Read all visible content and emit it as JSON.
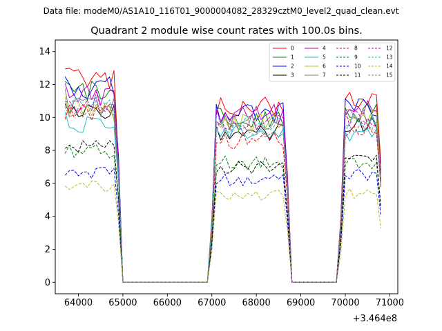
{
  "figure": {
    "suptitle": "Data file: modeM0/AS1A10_116T01_9000004082_28329cztM0_level2_quad_clean.evt",
    "title": "Quadrant 2 module wise count rates with 100.0s bins.",
    "offset_text": "+3.464e8"
  },
  "chart_data": {
    "type": "line",
    "title": "Quadrant 2 module wise count rates with 100.0s bins.",
    "xlabel": "",
    "ylabel": "",
    "x_offset": 346400000,
    "xlim": [
      63480,
      71180
    ],
    "ylim": [
      -0.7,
      14.7
    ],
    "xticks": [
      64000,
      65000,
      66000,
      67000,
      68000,
      69000,
      70000,
      71000
    ],
    "yticks": [
      0,
      2,
      4,
      6,
      8,
      10,
      12,
      14
    ],
    "xtick_labels": [
      "64000",
      "65000",
      "66000",
      "67000",
      "68000",
      "69000",
      "70000",
      "71000"
    ],
    "ytick_labels": [
      "0",
      "2",
      "4",
      "6",
      "8",
      "10",
      "12",
      "14"
    ],
    "legend_position": "top-right",
    "legend_columns": 4,
    "segments": [
      {
        "start": 63700,
        "end": 64900
      },
      {
        "start": 67000,
        "end": 68700
      },
      {
        "start": 69900,
        "end": 70800
      }
    ],
    "series": [
      {
        "name": "0",
        "color": "#ff0000",
        "dash": "solid",
        "levels": [
          12.4,
          10.7,
          11.1
        ]
      },
      {
        "name": "1",
        "color": "#008000",
        "dash": "solid",
        "levels": [
          11.6,
          10.0,
          10.3
        ]
      },
      {
        "name": "2",
        "color": "#0000ff",
        "dash": "solid",
        "levels": [
          11.8,
          10.3,
          10.6
        ]
      },
      {
        "name": "3",
        "color": "#000000",
        "dash": "solid",
        "levels": [
          10.2,
          9.1,
          9.6
        ]
      },
      {
        "name": "4",
        "color": "#bf00bf",
        "dash": "solid",
        "levels": [
          11.3,
          10.2,
          10.4
        ]
      },
      {
        "name": "5",
        "color": "#17becf",
        "dash": "solid",
        "levels": [
          9.6,
          9.2,
          9.1
        ]
      },
      {
        "name": "6",
        "color": "#bcbd22",
        "dash": "solid",
        "levels": [
          10.4,
          9.7,
          9.9
        ]
      },
      {
        "name": "7",
        "color": "#7f7f7f",
        "dash": "solid",
        "levels": [
          10.8,
          9.8,
          10.0
        ]
      },
      {
        "name": "8",
        "color": "#ff0000",
        "dash": "dashed",
        "levels": [
          10.2,
          8.6,
          9.3
        ]
      },
      {
        "name": "9",
        "color": "#008000",
        "dash": "dashed",
        "levels": [
          8.0,
          7.3,
          7.3
        ]
      },
      {
        "name": "10",
        "color": "#0000ff",
        "dash": "dashed",
        "levels": [
          6.6,
          6.2,
          6.5
        ]
      },
      {
        "name": "11",
        "color": "#000000",
        "dash": "dashed",
        "levels": [
          8.2,
          7.0,
          7.4
        ]
      },
      {
        "name": "12",
        "color": "#bf00bf",
        "dash": "dashed",
        "levels": [
          11.0,
          9.8,
          10.0
        ]
      },
      {
        "name": "13",
        "color": "#17becf",
        "dash": "dashed",
        "levels": [
          10.7,
          9.6,
          9.7
        ]
      },
      {
        "name": "14",
        "color": "#bcbd22",
        "dash": "dashed",
        "levels": [
          5.8,
          5.3,
          5.4
        ]
      },
      {
        "name": "15",
        "color": "#7f7f7f",
        "dash": "dashed",
        "levels": [
          10.5,
          9.3,
          9.6
        ]
      }
    ]
  }
}
